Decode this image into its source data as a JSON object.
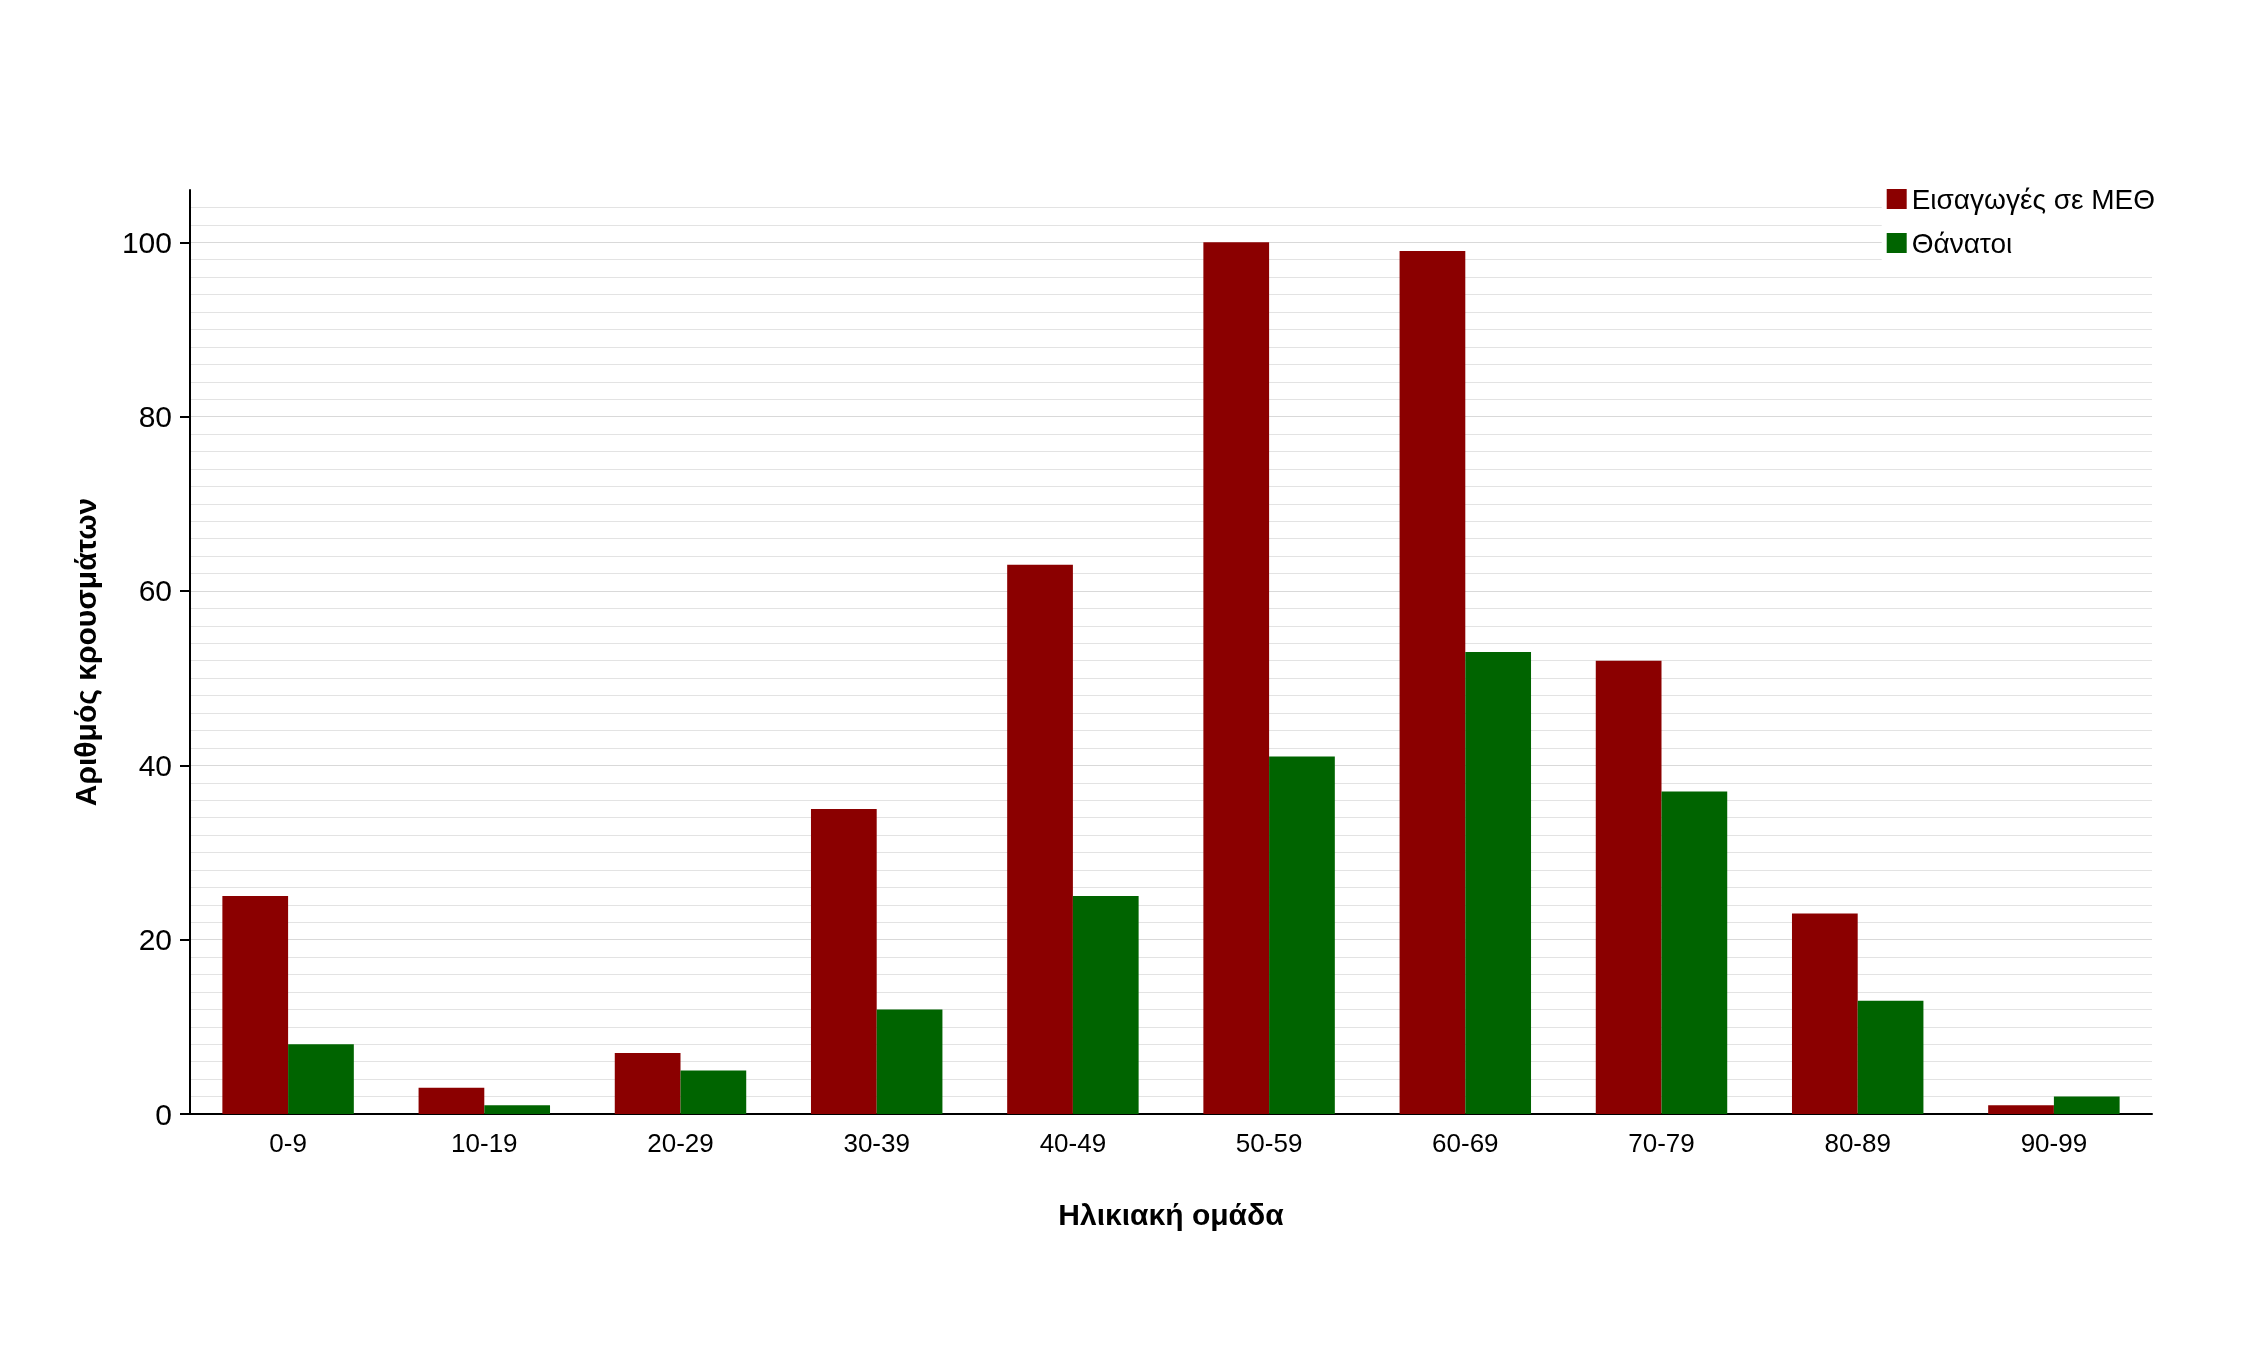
{
  "chart_data": {
    "type": "bar",
    "xlabel": "Ηλικιακή ομάδα",
    "ylabel": "Αριθμός κρουσμάτων",
    "categories": [
      "0-9",
      "10-19",
      "20-29",
      "30-39",
      "40-49",
      "50-59",
      "60-69",
      "70-79",
      "80-89",
      "90-99"
    ],
    "series": [
      {
        "name": "Εισαγωγές σε ΜΕΘ",
        "color": "#8b0000",
        "values": [
          25,
          3,
          7,
          35,
          63,
          100,
          99,
          52,
          23,
          1
        ]
      },
      {
        "name": "Θάνατοι",
        "color": "#006400",
        "values": [
          8,
          1,
          5,
          12,
          25,
          41,
          53,
          37,
          13,
          2
        ]
      }
    ],
    "ylim": [
      0,
      106
    ],
    "yticks": [
      0,
      20,
      40,
      60,
      80,
      100
    ],
    "grid": true,
    "legend": "top right"
  }
}
